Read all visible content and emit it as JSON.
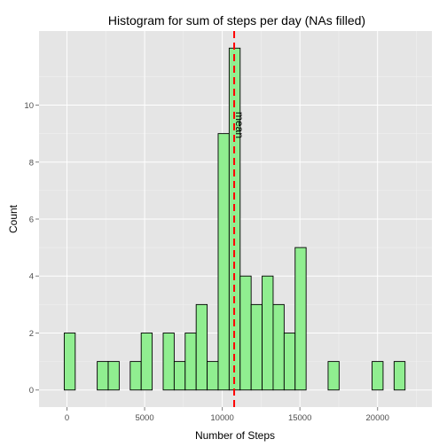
{
  "chart_data": {
    "type": "bar",
    "title": "Histogram for sum of steps per day (NAs filled)",
    "xlabel": "Number of Steps",
    "ylabel": "Count",
    "xlim": [
      -1800,
      23500
    ],
    "ylim": [
      -0.6,
      12.6
    ],
    "x_ticks": [
      0,
      5000,
      10000,
      15000,
      20000
    ],
    "x_tick_labels": [
      "0",
      "5000",
      "10000",
      "15000",
      "20000"
    ],
    "y_ticks": [
      0,
      2,
      4,
      6,
      8,
      10
    ],
    "y_tick_labels": [
      "0",
      "2",
      "4",
      "6",
      "8",
      "10"
    ],
    "bin_width": 708,
    "bins": [
      {
        "x": 177,
        "count": 2
      },
      {
        "x": 885,
        "count": 0
      },
      {
        "x": 1593,
        "count": 0
      },
      {
        "x": 2301,
        "count": 1
      },
      {
        "x": 3009,
        "count": 1
      },
      {
        "x": 3717,
        "count": 0
      },
      {
        "x": 4425,
        "count": 1
      },
      {
        "x": 5133,
        "count": 2
      },
      {
        "x": 5841,
        "count": 0
      },
      {
        "x": 6549,
        "count": 2
      },
      {
        "x": 7257,
        "count": 1
      },
      {
        "x": 7965,
        "count": 2
      },
      {
        "x": 8673,
        "count": 3
      },
      {
        "x": 9381,
        "count": 1
      },
      {
        "x": 10089,
        "count": 9
      },
      {
        "x": 10797,
        "count": 12
      },
      {
        "x": 11505,
        "count": 4
      },
      {
        "x": 12213,
        "count": 3
      },
      {
        "x": 12921,
        "count": 4
      },
      {
        "x": 13629,
        "count": 3
      },
      {
        "x": 14337,
        "count": 2
      },
      {
        "x": 15045,
        "count": 5
      },
      {
        "x": 15753,
        "count": 0
      },
      {
        "x": 16461,
        "count": 0
      },
      {
        "x": 17169,
        "count": 1
      },
      {
        "x": 17877,
        "count": 0
      },
      {
        "x": 18585,
        "count": 0
      },
      {
        "x": 19293,
        "count": 0
      },
      {
        "x": 20001,
        "count": 1
      },
      {
        "x": 20709,
        "count": 0
      },
      {
        "x": 21417,
        "count": 1
      },
      {
        "x": 22125,
        "count": 0
      }
    ],
    "mean_line": {
      "x": 10766,
      "label": "mean",
      "color": "#ff0000"
    },
    "grid": true,
    "colors": {
      "panel_bg": "#e5e5e5",
      "grid_major": "#ffffff",
      "grid_minor": "#f2f2f2",
      "bar_fill": "#90ee90",
      "bar_stroke": "#000000"
    }
  }
}
